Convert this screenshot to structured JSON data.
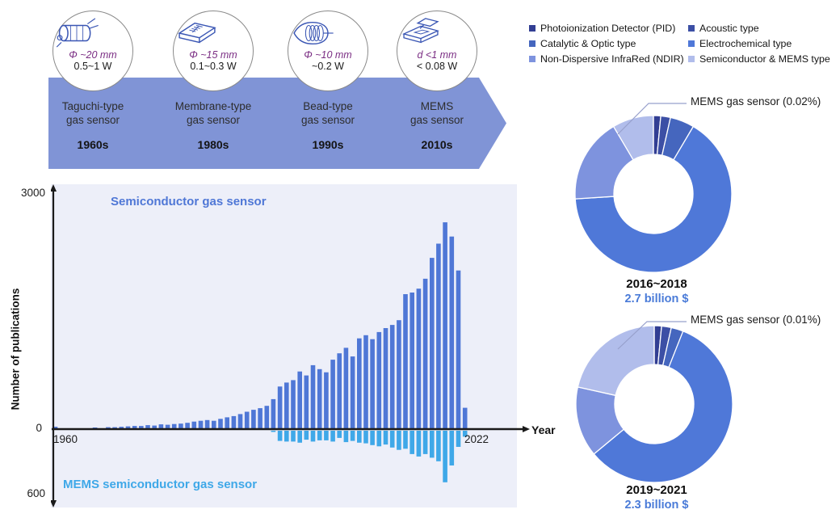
{
  "timeline": {
    "arrow_color": "#8094D6",
    "stages": [
      {
        "icon": "taguchi-sensor-icon",
        "size": "Φ ~20 mm",
        "power": "0.5~1 W",
        "name": "Taguchi-type\ngas sensor",
        "decade": "1960s"
      },
      {
        "icon": "membrane-sensor-icon",
        "size": "Φ ~15 mm",
        "power": "0.1~0.3 W",
        "name": "Membrane-type\ngas sensor",
        "decade": "1980s"
      },
      {
        "icon": "bead-sensor-icon",
        "size": "Φ ~10 mm",
        "power": "~0.2 W",
        "name": "Bead-type\ngas sensor",
        "decade": "1990s"
      },
      {
        "icon": "mems-sensor-icon",
        "size": "d <1 mm",
        "power": "< 0.08 W",
        "name": "MEMS\ngas sensor",
        "decade": "2010s"
      }
    ]
  },
  "market": {
    "legend": [
      {
        "label": "Photoionization Detector (PID)",
        "color": "#323E93"
      },
      {
        "label": "Catalytic & Optic type",
        "color": "#4566BE"
      },
      {
        "label": "Non-Dispersive InfraRed (NDIR)",
        "color": "#7E93DE"
      },
      {
        "label": "Acoustic type",
        "color": "#3C4FA5"
      },
      {
        "label": "Electrochemical type",
        "color": "#4F78D8"
      },
      {
        "label": "Semiconductor & MEMS type",
        "color": "#B1BDEB"
      }
    ]
  },
  "chart_data": [
    {
      "type": "bar",
      "title": "",
      "xlabel": "Year",
      "ylabel": "Number of publications",
      "x_ticks": [
        "1960",
        "2022"
      ],
      "y_axis": {
        "top_label": "3000",
        "zero_label": "0",
        "bottom_label": "600"
      },
      "y_up_max": 3000,
      "y_down_max": 600,
      "grid": false,
      "series": [
        {
          "name": "Semiconductor gas sensor",
          "color": "#4F77D6",
          "direction": "up",
          "years": [
            1960,
            1961,
            1962,
            1963,
            1964,
            1965,
            1966,
            1967,
            1968,
            1969,
            1970,
            1971,
            1972,
            1973,
            1974,
            1975,
            1976,
            1977,
            1978,
            1979,
            1980,
            1981,
            1982,
            1983,
            1984,
            1985,
            1986,
            1987,
            1988,
            1989,
            1990,
            1991,
            1992,
            1993,
            1994,
            1995,
            1996,
            1997,
            1998,
            1999,
            2000,
            2001,
            2002,
            2003,
            2004,
            2005,
            2006,
            2007,
            2008,
            2009,
            2010,
            2011,
            2012,
            2013,
            2014,
            2015,
            2016,
            2017,
            2018,
            2019,
            2020,
            2021,
            2022
          ],
          "values": [
            30,
            0,
            0,
            0,
            0,
            0,
            20,
            0,
            25,
            25,
            30,
            35,
            40,
            40,
            50,
            45,
            60,
            55,
            65,
            70,
            80,
            95,
            105,
            115,
            105,
            130,
            150,
            165,
            190,
            220,
            245,
            265,
            295,
            380,
            540,
            590,
            620,
            730,
            680,
            810,
            760,
            720,
            880,
            960,
            1030,
            920,
            1150,
            1190,
            1140,
            1230,
            1280,
            1320,
            1380,
            1710,
            1730,
            1780,
            1905,
            2170,
            2350,
            2620,
            2440,
            2010,
            270
          ]
        },
        {
          "name": "MEMS semiconductor gas sensor",
          "color": "#3FA8E8",
          "direction": "down",
          "years": [
            1993,
            1994,
            1995,
            1996,
            1997,
            1998,
            1999,
            2000,
            2001,
            2002,
            2003,
            2004,
            2005,
            2006,
            2007,
            2008,
            2009,
            2010,
            2011,
            2012,
            2013,
            2014,
            2015,
            2016,
            2017,
            2018,
            2019,
            2020,
            2021,
            2022
          ],
          "values": [
            10,
            85,
            90,
            90,
            100,
            75,
            90,
            80,
            80,
            90,
            60,
            95,
            85,
            100,
            105,
            120,
            130,
            115,
            140,
            160,
            150,
            195,
            215,
            195,
            225,
            255,
            430,
            290,
            135,
            50
          ]
        }
      ]
    },
    {
      "type": "pie",
      "title": "2016~2018",
      "subtitle": "2.7 billion $",
      "annotation": "MEMS gas sensor   (0.02%)",
      "legend_position": "top",
      "slices": [
        {
          "label": "Photoionization Detector (PID)",
          "pct": 1.5,
          "color": "#323E93"
        },
        {
          "label": "Acoustic type",
          "pct": 2,
          "color": "#3C4FA5"
        },
        {
          "label": "Catalytic & Optic type",
          "pct": 5,
          "color": "#4566BE"
        },
        {
          "label": "Electrochemical type",
          "pct": 65.5,
          "color": "#4F78D8"
        },
        {
          "label": "Non-Dispersive InfraRed (NDIR)",
          "pct": 17.5,
          "color": "#7E93DE"
        },
        {
          "label": "Semiconductor & MEMS type",
          "pct": 8.5,
          "color": "#B1BDEB"
        }
      ]
    },
    {
      "type": "pie",
      "title": "2019~2021",
      "subtitle": "2.3 billion $",
      "annotation": "MEMS gas sensor   (0.01%)",
      "legend_position": "top",
      "slices": [
        {
          "label": "Photoionization Detector (PID)",
          "pct": 1.5,
          "color": "#323E93"
        },
        {
          "label": "Acoustic type",
          "pct": 2,
          "color": "#3C4FA5"
        },
        {
          "label": "Catalytic & Optic type",
          "pct": 2.5,
          "color": "#4566BE"
        },
        {
          "label": "Electrochemical type",
          "pct": 58,
          "color": "#4F78D8"
        },
        {
          "label": "Non-Dispersive InfraRed (NDIR)",
          "pct": 14.5,
          "color": "#7E93DE"
        },
        {
          "label": "Semiconductor & MEMS type",
          "pct": 21.5,
          "color": "#B1BDEB"
        }
      ]
    }
  ],
  "colors": {
    "semiconductor_bars": "#4F77D6",
    "mems_bars": "#3FA8E8",
    "plot_background": "#EDEFF9",
    "billion_text": "#4A7BD8",
    "mems_label_text": "#3FA8E8",
    "size_text": "#7A2D83"
  }
}
